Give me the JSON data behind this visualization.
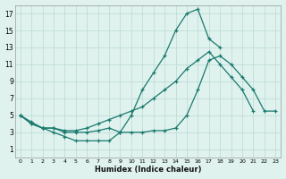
{
  "xlabel": "Humidex (Indice chaleur)",
  "bg_color": "#dff2ee",
  "grid_color": "#c0ddd8",
  "line_color": "#1a7a6e",
  "xlim": [
    -0.5,
    23.5
  ],
  "ylim": [
    0,
    18
  ],
  "xticks": [
    0,
    1,
    2,
    3,
    4,
    5,
    6,
    7,
    8,
    9,
    10,
    11,
    12,
    13,
    14,
    15,
    16,
    17,
    18,
    19,
    20,
    21,
    22,
    23
  ],
  "yticks": [
    1,
    3,
    5,
    7,
    9,
    11,
    13,
    15,
    17
  ],
  "curve1_x": [
    0,
    1,
    2,
    3,
    4,
    5,
    6,
    7,
    8,
    9,
    10,
    11,
    12,
    13,
    14,
    15,
    16,
    17,
    18
  ],
  "curve1_y": [
    5,
    4,
    3.5,
    3.5,
    3,
    3,
    3,
    3.2,
    3.5,
    3,
    5,
    8,
    10,
    12,
    15,
    17,
    17.5,
    14,
    13
  ],
  "curve2_x": [
    0,
    1,
    2,
    3,
    4,
    5,
    6,
    7,
    8,
    9,
    10,
    11,
    12,
    13,
    14,
    15,
    16,
    17,
    18,
    19,
    20,
    21,
    22,
    23
  ],
  "curve2_y": [
    5,
    4,
    3.5,
    3,
    2.5,
    2,
    2,
    2,
    2,
    3,
    3,
    3,
    3.2,
    3.2,
    3.5,
    5,
    8,
    11.5,
    12,
    11,
    9.5,
    8,
    5.5,
    5.5
  ],
  "curve3_x": [
    0,
    1,
    2,
    3,
    4,
    5,
    6,
    7,
    8,
    9,
    10,
    11,
    12,
    13,
    14,
    15,
    16,
    17,
    18,
    19,
    20,
    21,
    22,
    23
  ],
  "curve3_y": [
    5,
    4.2,
    3.5,
    3.5,
    3.2,
    3.2,
    3.5,
    4,
    4.5,
    5,
    5.5,
    6,
    7,
    8,
    9,
    10.5,
    11.5,
    12.5,
    11,
    9.5,
    8,
    5.5,
    null,
    null
  ]
}
